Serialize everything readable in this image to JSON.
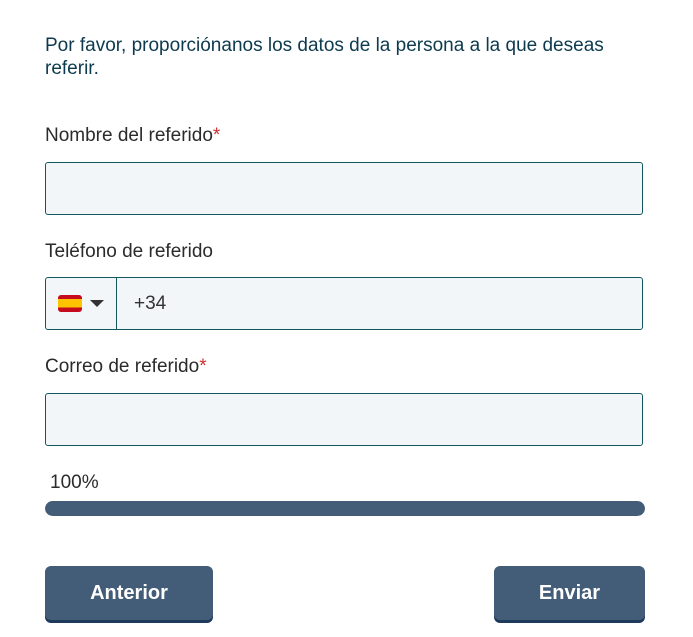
{
  "intro": "Por favor, proporciónanos los datos de la persona a la que deseas referir.",
  "fields": {
    "name": {
      "label": "Nombre del referido",
      "required": "*",
      "value": ""
    },
    "phone": {
      "label": "Teléfono de referido",
      "country_flag": "spain-flag-icon",
      "value": "+34"
    },
    "email": {
      "label": "Correo de referido",
      "required": "*",
      "value": ""
    }
  },
  "progress": {
    "label": "100%",
    "percent": 100,
    "color": "#435c78"
  },
  "buttons": {
    "previous": "Anterior",
    "submit": "Enviar"
  }
}
